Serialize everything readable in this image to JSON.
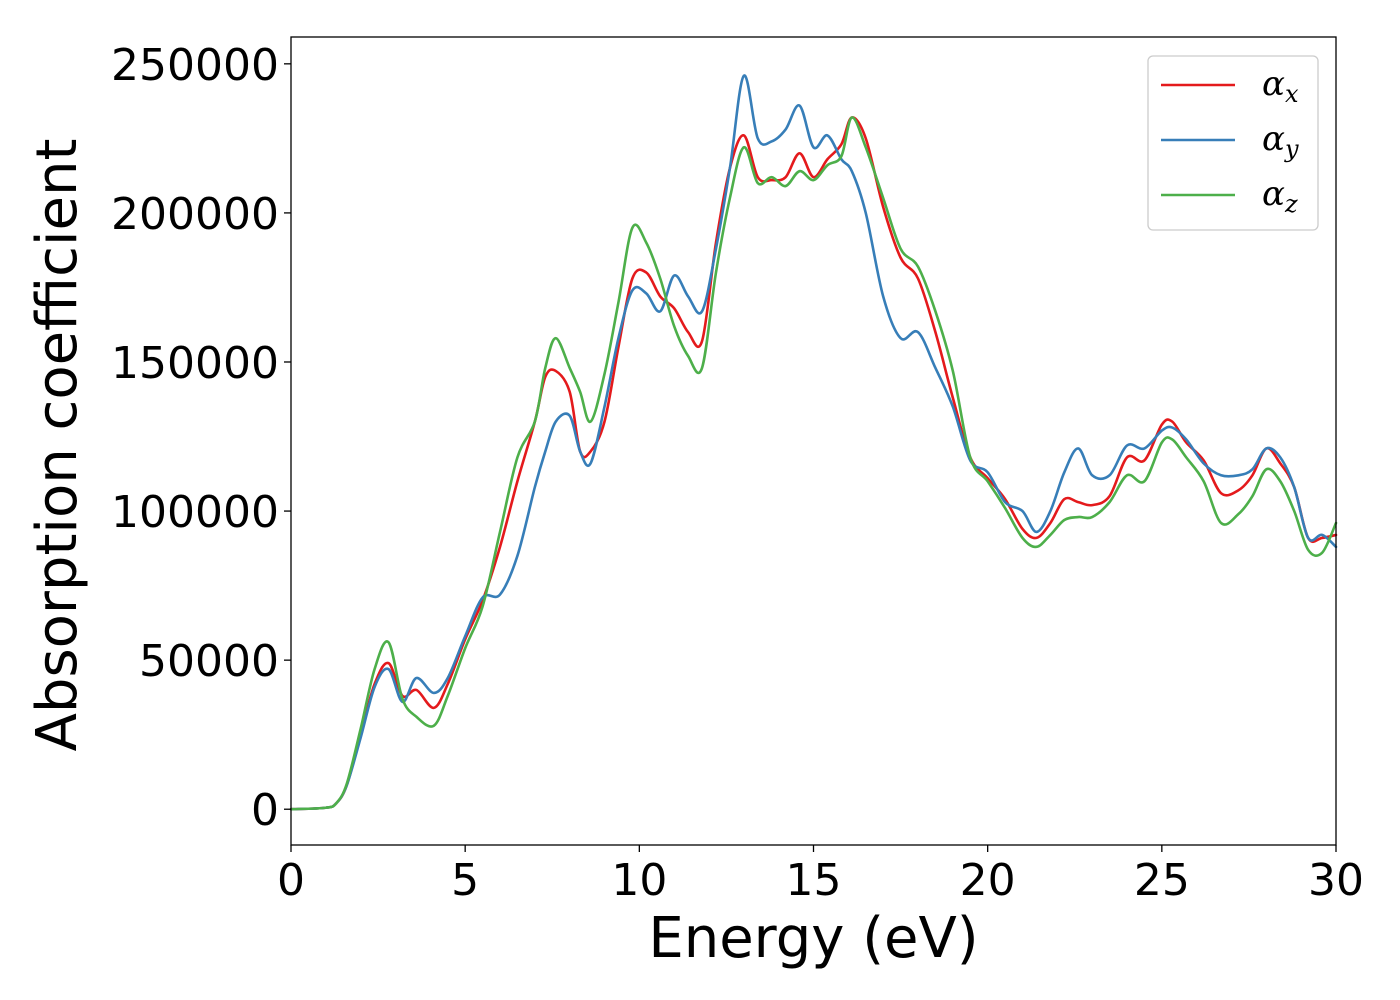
{
  "chart_data": {
    "type": "line",
    "xlabel": "Energy (eV)",
    "ylabel": "Absorption coefficient",
    "xlim": [
      0,
      30
    ],
    "ylim": [
      -12000,
      259000
    ],
    "xticks": [
      0,
      5,
      10,
      15,
      20,
      25,
      30
    ],
    "xtick_labels": [
      "0",
      "5",
      "10",
      "15",
      "20",
      "25",
      "30"
    ],
    "yticks": [
      0,
      50000,
      100000,
      150000,
      200000,
      250000
    ],
    "ytick_labels": [
      "0",
      "50000",
      "100000",
      "150000",
      "200000",
      "250000"
    ],
    "grid": false,
    "legend_position": "top-right",
    "series": [
      {
        "name": "α",
        "subscript": "x",
        "color": "#e41a1c",
        "x": [
          0,
          1,
          1.3,
          1.6,
          2.0,
          2.4,
          2.8,
          3.2,
          3.6,
          4.1,
          4.5,
          5.0,
          5.5,
          6.0,
          6.5,
          7.0,
          7.3,
          7.6,
          8.0,
          8.3,
          8.6,
          9.0,
          9.4,
          9.8,
          10.2,
          10.6,
          11.0,
          11.4,
          11.8,
          12.2,
          12.6,
          13.0,
          13.4,
          13.8,
          14.2,
          14.6,
          15.0,
          15.4,
          15.8,
          16.1,
          16.5,
          17.0,
          17.5,
          18.0,
          18.5,
          19.0,
          19.5,
          20.0,
          20.5,
          21.0,
          21.4,
          21.8,
          22.2,
          22.6,
          23.0,
          23.5,
          24.0,
          24.5,
          25.0,
          25.3,
          25.7,
          26.2,
          26.7,
          27.2,
          27.6,
          28.0,
          28.4,
          28.8,
          29.2,
          29.6,
          30.0
        ],
        "y": [
          0,
          500,
          2000,
          8000,
          25000,
          42000,
          49000,
          38000,
          40000,
          34000,
          42000,
          57000,
          70000,
          88000,
          110000,
          130000,
          145000,
          147000,
          140000,
          120000,
          120000,
          130000,
          155000,
          178000,
          180000,
          172000,
          168000,
          160000,
          157000,
          190000,
          215000,
          226000,
          212000,
          211000,
          212000,
          220000,
          212000,
          218000,
          223000,
          232000,
          225000,
          202000,
          185000,
          178000,
          160000,
          138000,
          118000,
          111000,
          104000,
          94000,
          91000,
          96000,
          104000,
          103000,
          102000,
          105000,
          118000,
          117000,
          129000,
          130000,
          123000,
          117000,
          106000,
          107000,
          112000,
          121000,
          116000,
          108000,
          91000,
          91000,
          92000
        ]
      },
      {
        "name": "α",
        "subscript": "y",
        "color": "#377eb8",
        "x": [
          0,
          1,
          1.3,
          1.6,
          2.0,
          2.4,
          2.8,
          3.2,
          3.6,
          4.1,
          4.5,
          5.0,
          5.5,
          6.0,
          6.5,
          7.0,
          7.3,
          7.6,
          8.0,
          8.3,
          8.6,
          9.0,
          9.4,
          9.8,
          10.2,
          10.6,
          11.0,
          11.4,
          11.8,
          12.2,
          12.6,
          13.0,
          13.4,
          13.8,
          14.2,
          14.6,
          15.0,
          15.4,
          15.8,
          16.1,
          16.5,
          17.0,
          17.5,
          18.0,
          18.5,
          19.0,
          19.5,
          20.0,
          20.5,
          21.0,
          21.4,
          21.8,
          22.2,
          22.6,
          23.0,
          23.5,
          24.0,
          24.5,
          25.0,
          25.3,
          25.7,
          26.2,
          26.7,
          27.2,
          27.6,
          28.0,
          28.4,
          28.8,
          29.2,
          29.6,
          30.0
        ],
        "y": [
          0,
          500,
          2000,
          8000,
          24000,
          41000,
          47000,
          36000,
          44000,
          39000,
          44000,
          58000,
          71000,
          72000,
          85000,
          108000,
          120000,
          130000,
          132000,
          120000,
          116000,
          135000,
          158000,
          174000,
          173000,
          167000,
          179000,
          172000,
          167000,
          188000,
          215000,
          246000,
          225000,
          224000,
          228000,
          236000,
          222000,
          226000,
          218000,
          214000,
          200000,
          172000,
          158000,
          160000,
          148000,
          135000,
          117000,
          113000,
          103000,
          100000,
          93000,
          100000,
          113000,
          121000,
          112000,
          112000,
          122000,
          121000,
          127000,
          128000,
          124000,
          116000,
          112000,
          112000,
          114000,
          121000,
          118000,
          108000,
          91000,
          92000,
          88000
        ]
      },
      {
        "name": "α",
        "subscript": "z",
        "color": "#4daf4a",
        "x": [
          0,
          1,
          1.3,
          1.6,
          2.0,
          2.4,
          2.8,
          3.2,
          3.6,
          4.1,
          4.5,
          5.0,
          5.5,
          6.0,
          6.5,
          7.0,
          7.3,
          7.6,
          8.0,
          8.3,
          8.6,
          9.0,
          9.4,
          9.8,
          10.2,
          10.6,
          11.0,
          11.4,
          11.8,
          12.2,
          12.6,
          13.0,
          13.4,
          13.8,
          14.2,
          14.6,
          15.0,
          15.4,
          15.8,
          16.1,
          16.5,
          17.0,
          17.5,
          18.0,
          18.5,
          19.0,
          19.5,
          20.0,
          20.5,
          21.0,
          21.4,
          21.8,
          22.2,
          22.6,
          23.0,
          23.5,
          24.0,
          24.5,
          25.0,
          25.3,
          25.7,
          26.2,
          26.7,
          27.2,
          27.6,
          28.0,
          28.4,
          28.8,
          29.2,
          29.6,
          30.0
        ],
        "y": [
          0,
          500,
          2000,
          8500,
          27000,
          47000,
          56000,
          37000,
          31000,
          28000,
          38000,
          54000,
          68000,
          93000,
          118000,
          130000,
          148000,
          158000,
          148000,
          140000,
          130000,
          146000,
          170000,
          195000,
          190000,
          178000,
          162000,
          152000,
          148000,
          180000,
          205000,
          222000,
          210000,
          212000,
          209000,
          214000,
          211000,
          216000,
          219000,
          232000,
          222000,
          205000,
          188000,
          182000,
          167000,
          147000,
          118000,
          110000,
          101000,
          91000,
          88000,
          92000,
          97000,
          98000,
          98000,
          103000,
          112000,
          110000,
          123000,
          124000,
          118000,
          110000,
          96000,
          99000,
          105000,
          114000,
          110000,
          100000,
          87000,
          86000,
          96000
        ]
      }
    ]
  }
}
